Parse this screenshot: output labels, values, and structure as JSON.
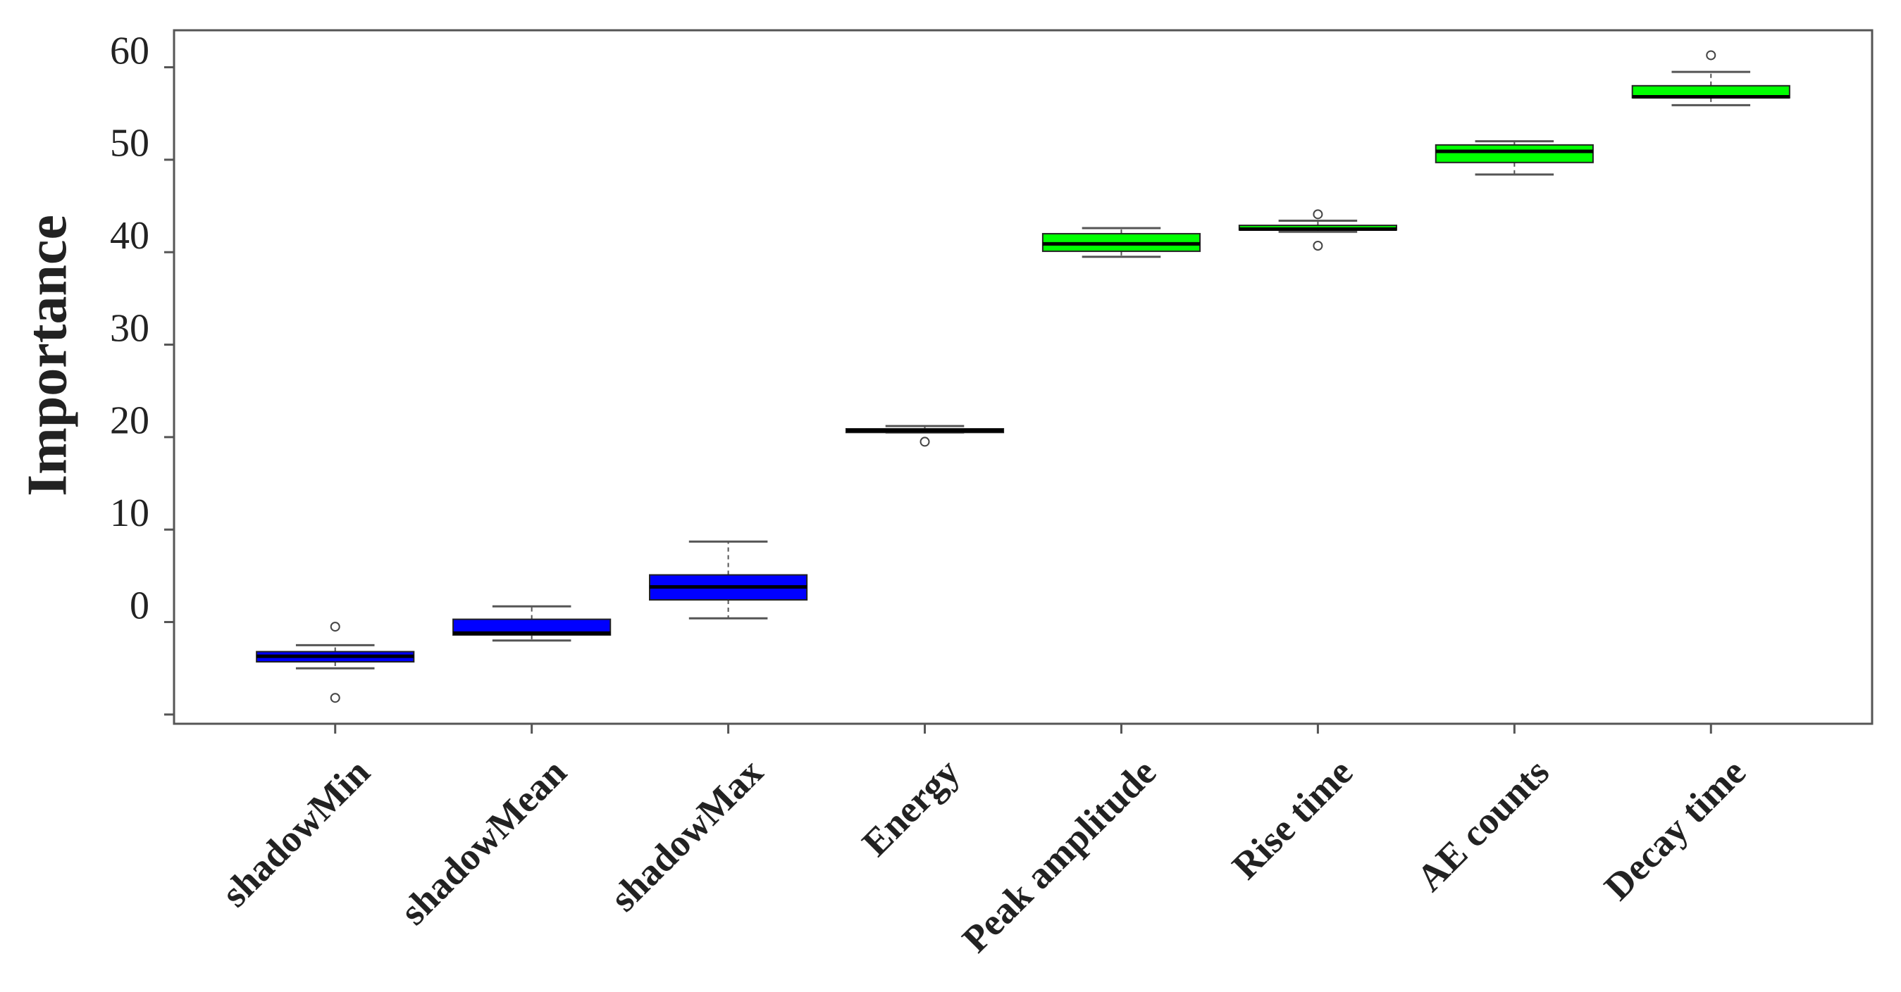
{
  "chart_data": {
    "type": "boxplot",
    "y_label": "Importance",
    "categories": [
      "shadowMin",
      "shadowMean",
      "shadowMax",
      "Energy",
      "Peak amplitude",
      "Rise time",
      "AE counts",
      "Decay time"
    ],
    "colors": [
      "#0000ff",
      "#0000ff",
      "#0000ff",
      "#00ff00",
      "#00ff00",
      "#00ff00",
      "#00ff00",
      "#00ff00"
    ],
    "whisker_low": [
      -5.0,
      -2.0,
      0.4,
      20.5,
      39.5,
      42.2,
      48.4,
      55.9
    ],
    "q1": [
      -4.3,
      -1.4,
      2.4,
      20.5,
      40.1,
      42.4,
      49.7,
      56.7
    ],
    "median": [
      -3.7,
      -1.2,
      3.8,
      20.7,
      40.9,
      42.5,
      50.9,
      56.8
    ],
    "q3": [
      -3.2,
      0.3,
      5.1,
      20.9,
      42.0,
      42.9,
      51.6,
      58.0
    ],
    "whisker_high": [
      -2.5,
      1.7,
      8.7,
      21.2,
      42.6,
      43.4,
      52.0,
      59.5
    ],
    "outliers": [
      [
        -0.5,
        -8.2
      ],
      [],
      [],
      [
        19.5
      ],
      [],
      [
        44.1,
        40.7
      ],
      [],
      [
        61.3
      ]
    ],
    "ylim": [
      -11,
      64
    ],
    "yticks": [
      0,
      10,
      20,
      30,
      40,
      50,
      60
    ],
    "minor_yticks": [
      -10
    ]
  }
}
